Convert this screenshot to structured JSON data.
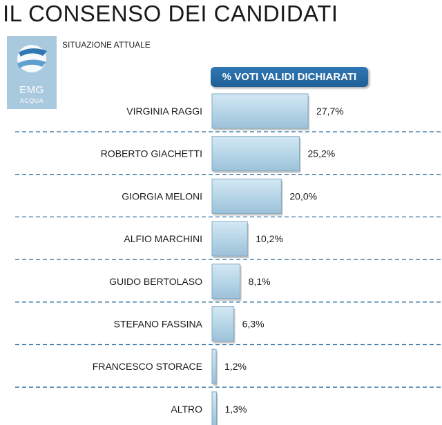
{
  "page": {
    "title": "IL CONSENSO DEI CANDIDATI",
    "subtitle": "SITUAZIONE ATTUALE",
    "logo": {
      "name": "EMG",
      "sub": "ACQUA"
    }
  },
  "chart_data": {
    "type": "bar",
    "orientation": "horizontal",
    "title": "% VOTI VALIDI DICHIARATI",
    "categories": [
      "VIRGINIA RAGGI",
      "ROBERTO GIACHETTI",
      "GIORGIA MELONI",
      "ALFIO MARCHINI",
      "GUIDO BERTOLASO",
      "STEFANO FASSINA",
      "FRANCESCO STORACE",
      "ALTRO"
    ],
    "values": [
      27.7,
      25.2,
      20.0,
      10.2,
      8.1,
      6.3,
      1.2,
      1.3
    ],
    "value_labels": [
      "27,7%",
      "25,2%",
      "20,0%",
      "10,2%",
      "8,1%",
      "6,3%",
      "1,2%",
      "1,3%"
    ],
    "colors": {
      "bar": "#b4d4e6",
      "bar_edge": "#7fa9c3",
      "separator": "#2e6e9e",
      "header": "#2569a6"
    }
  }
}
